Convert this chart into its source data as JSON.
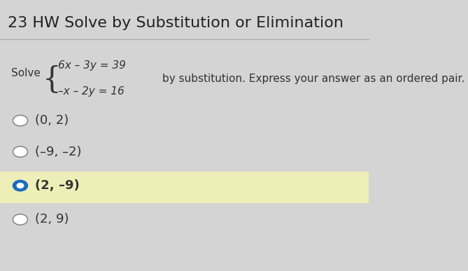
{
  "title": "23 HW Solve by Substitution or Elimination",
  "title_fontsize": 16,
  "title_color": "#222222",
  "background_color": "#d4d4d4",
  "solve_label": "Solve",
  "eq1": "6x – 3y = 39",
  "eq2": "–x – 2y = 16",
  "instruction": "by substitution. Express your answer as an ordered pair.",
  "options": [
    "(0, 2)",
    "(–9, –2)",
    "(2, –9)",
    "(2, 9)"
  ],
  "correct_index": 2,
  "selected_bg": "#eeeeb8",
  "radio_selected_color": "#1a6bbf",
  "radio_unselected_color": "#888888",
  "text_color": "#333333",
  "option_fontsize": 13,
  "eq_fontsize": 11,
  "instruction_fontsize": 11,
  "divider_color": "#aaaaaa"
}
